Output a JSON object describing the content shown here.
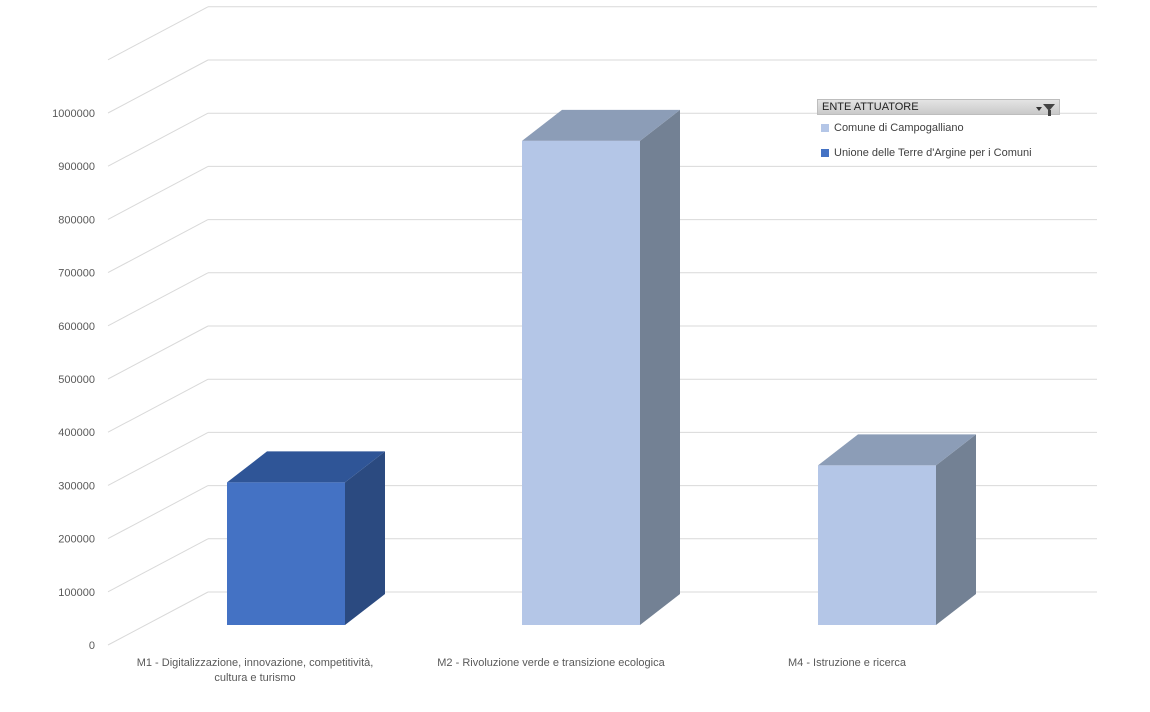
{
  "chart_data": {
    "type": "bar",
    "categories": [
      [
        "M1 - Digitalizzazione, innovazione, competitività,",
        "cultura e turismo"
      ],
      [
        "M2 - Rivoluzione verde e transizione ecologica"
      ],
      [
        "M4 - Istruzione e ricerca"
      ]
    ],
    "series": [
      {
        "name": "Comune di Campogalliano",
        "color": "#b4c6e7",
        "values": [
          null,
          910000,
          300000
        ]
      },
      {
        "name": "Unione delle Terre d'Argine per i Comuni",
        "color": "#4472c4",
        "values": [
          268000,
          null,
          null
        ]
      }
    ],
    "ylim": [
      0,
      1000000
    ],
    "yticks": [
      0,
      100000,
      200000,
      300000,
      400000,
      500000,
      600000,
      700000,
      800000,
      900000,
      1000000
    ],
    "grid": true,
    "legend_position": "top-right",
    "title": "",
    "xlabel": "",
    "ylabel": ""
  },
  "legend": {
    "header": "ENTE ATTUATORE",
    "filter_icon": "filter-funnel-icon",
    "items": [
      {
        "label": "Comune di Campogalliano",
        "color": "#b4c6e7"
      },
      {
        "label": "Unione delle Terre d'Argine per i Comuni",
        "color": "#4472c4"
      }
    ]
  }
}
